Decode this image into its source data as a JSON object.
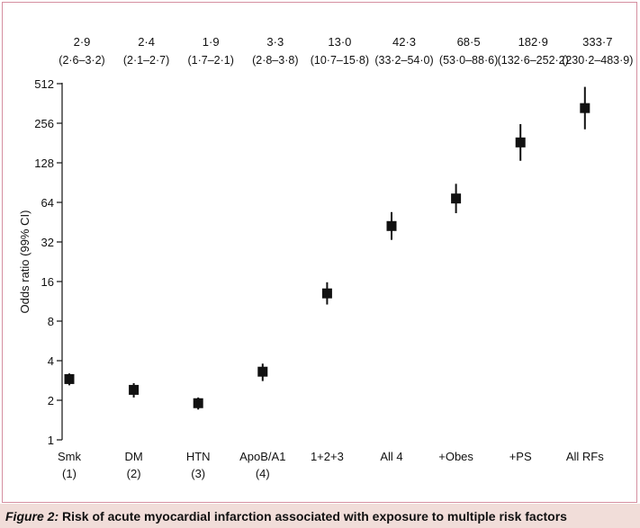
{
  "caption": {
    "label": "Figure 2:",
    "text": " Risk of acute myocardial infarction associated with exposure to multiple risk factors"
  },
  "chart_data": {
    "type": "scatter",
    "ylabel": "Odds ratio (99% CI)",
    "yscale": "log2",
    "ylim": [
      1,
      512
    ],
    "yticks": [
      1,
      2,
      4,
      8,
      16,
      32,
      64,
      128,
      256,
      512
    ],
    "categories": [
      [
        "Smk",
        "(1)"
      ],
      [
        "DM",
        "(2)"
      ],
      [
        "HTN",
        "(3)"
      ],
      [
        "ApoB/A1",
        "(4)"
      ],
      [
        "1+2+3"
      ],
      [
        "All 4"
      ],
      [
        "+Obes"
      ],
      [
        "+PS"
      ],
      [
        "All RFs"
      ]
    ],
    "series": [
      {
        "odds_ratio": [
          2.9,
          2.4,
          1.9,
          3.3,
          13.0,
          42.3,
          68.5,
          182.9,
          333.7
        ],
        "ci_low": [
          2.6,
          2.1,
          1.7,
          2.8,
          10.7,
          33.2,
          53.0,
          132.6,
          230.2
        ],
        "ci_high": [
          3.2,
          2.7,
          2.1,
          3.8,
          15.8,
          54.0,
          88.6,
          252.2,
          483.9
        ]
      }
    ],
    "top_labels": [
      {
        "value": "2·9",
        "ci": "(2·6–3·2)"
      },
      {
        "value": "2·4",
        "ci": "(2·1–2·7)"
      },
      {
        "value": "1·9",
        "ci": "(1·7–2·1)"
      },
      {
        "value": "3·3",
        "ci": "(2·8–3·8)"
      },
      {
        "value": "13·0",
        "ci": "(10·7–15·8)"
      },
      {
        "value": "42·3",
        "ci": "(33·2–54·0)"
      },
      {
        "value": "68·5",
        "ci": "(53·0–88·6)"
      },
      {
        "value": "182·9",
        "ci": "(132·6–252·2)"
      },
      {
        "value": "333·7",
        "ci": "(230·2–483·9)"
      }
    ],
    "colors": {
      "marker": "#111111",
      "axis": "#111111",
      "frame": "#d58fa0",
      "caption_bg": "#f1ddd9"
    }
  }
}
